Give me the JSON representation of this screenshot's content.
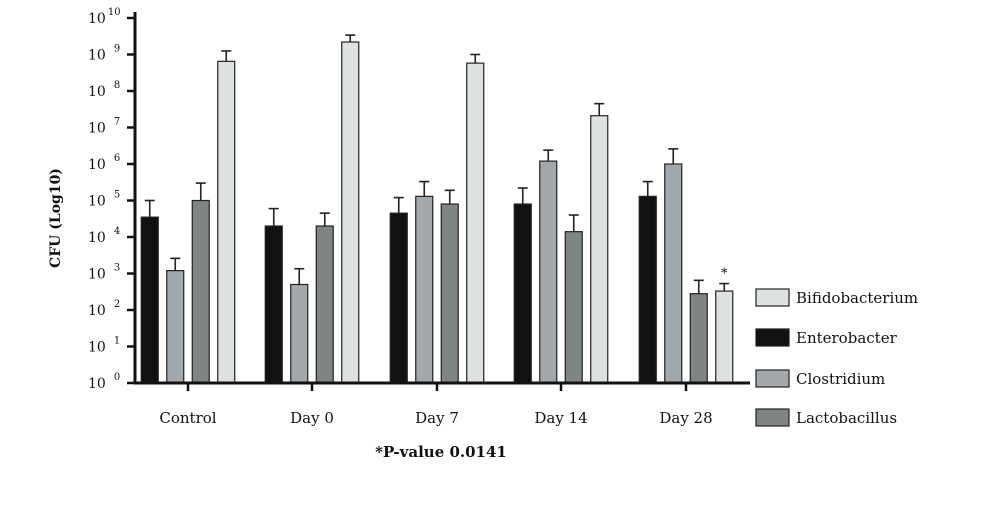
{
  "chart_data": {
    "type": "bar",
    "ylabel": "CFU (Log10)",
    "yscale": "log",
    "ylim": [
      1,
      10000000000
    ],
    "yticks": [
      {
        "value": 1,
        "base": "10",
        "exp": "0"
      },
      {
        "value": 10,
        "base": "10",
        "exp": "1"
      },
      {
        "value": 100,
        "base": "10",
        "exp": "2"
      },
      {
        "value": 1000,
        "base": "10",
        "exp": "3"
      },
      {
        "value": 10000,
        "base": "10",
        "exp": "4"
      },
      {
        "value": 100000,
        "base": "10",
        "exp": "5"
      },
      {
        "value": 1000000,
        "base": "10",
        "exp": "6"
      },
      {
        "value": 10000000,
        "base": "10",
        "exp": "7"
      },
      {
        "value": 100000000,
        "base": "10",
        "exp": "8"
      },
      {
        "value": 1000000000,
        "base": "10",
        "exp": "9"
      },
      {
        "value": 10000000000,
        "base": "10",
        "exp": "10"
      }
    ],
    "categories": [
      "Control",
      "Day 0",
      "Day 7",
      "Day 14",
      "Day 28"
    ],
    "series": [
      {
        "name": "Enterobacter",
        "color": "#111111",
        "values": [
          35000,
          20000,
          45000,
          80000,
          130000
        ],
        "error_upper": [
          100000,
          60000,
          120000,
          220000,
          330000
        ]
      },
      {
        "name": "Clostridium",
        "color": "#a3a8ad",
        "values": [
          1200,
          500,
          130000,
          1200000,
          1000000
        ],
        "error_upper": [
          2600,
          1350,
          330000,
          2400000,
          2600000
        ]
      },
      {
        "name": "Lactobacillus",
        "color": "#7f8582",
        "values": [
          100000,
          20000,
          80000,
          14000,
          280
        ],
        "error_upper": [
          300000,
          45000,
          190000,
          40000,
          650
        ]
      },
      {
        "name": "Bifidobacterium",
        "color": "#dde2df",
        "values": [
          650000000,
          2200000000,
          580000000,
          21000000,
          330
        ],
        "error_upper": [
          1250000000,
          3400000000,
          1000000000,
          45000000,
          530
        ]
      }
    ],
    "legend": {
      "placement": "right",
      "order": [
        "Bifidobacterium",
        "Enterobacter",
        "Clostridium",
        "Lactobacillus"
      ]
    },
    "annotations": [
      {
        "text": "*",
        "category": "Day 28",
        "series": "Bifidobacterium"
      }
    ],
    "footnote": "*P-value 0.0141"
  }
}
